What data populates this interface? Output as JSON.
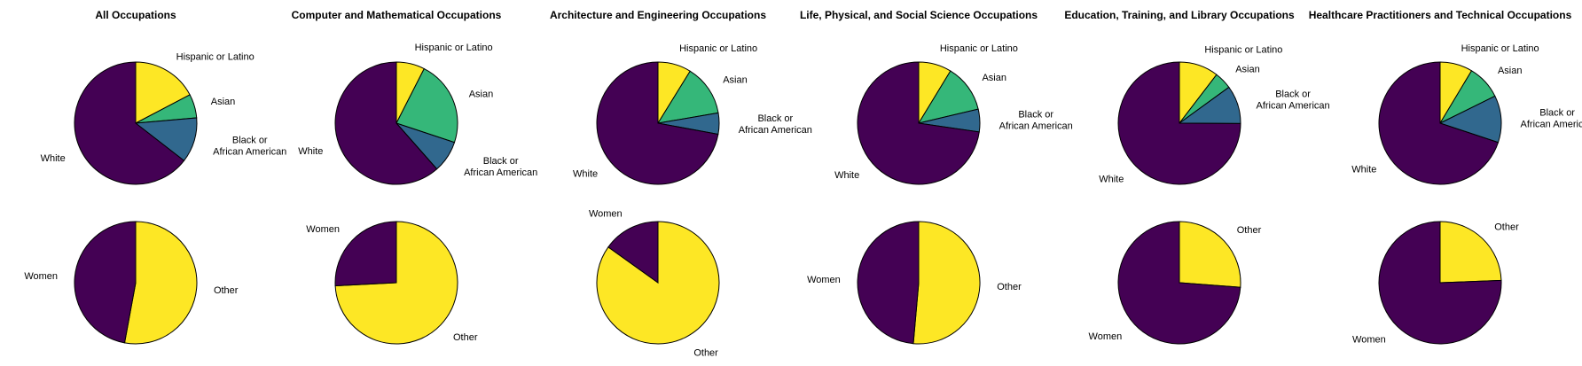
{
  "colors": {
    "White": "#440154",
    "Black or African American": "#31688e",
    "Asian": "#35b779",
    "Hispanic or Latino": "#fde725",
    "Women": "#440154",
    "Other": "#fde725"
  },
  "chart_data": [
    {
      "type": "pie",
      "title": "All Occupations",
      "race": [
        {
          "label": "Hispanic or Latino",
          "value": 17.3
        },
        {
          "label": "Asian",
          "value": 6.3
        },
        {
          "label": "Black or African American",
          "value": 11.9
        },
        {
          "label": "White",
          "value": 64.5
        }
      ],
      "gender": [
        {
          "label": "Other",
          "value": 52.9
        },
        {
          "label": "Women",
          "value": 47.1
        }
      ]
    },
    {
      "type": "pie",
      "title": "Computer and Mathematical Occupations",
      "race": [
        {
          "label": "Hispanic or Latino",
          "value": 7.5
        },
        {
          "label": "Asian",
          "value": 22.6
        },
        {
          "label": "Black or African American",
          "value": 8.4
        },
        {
          "label": "White",
          "value": 61.5
        }
      ],
      "gender": [
        {
          "label": "Other",
          "value": 74.2
        },
        {
          "label": "Women",
          "value": 25.8
        }
      ]
    },
    {
      "type": "pie",
      "title": "Architecture and Engineering Occupations",
      "race": [
        {
          "label": "Hispanic or Latino",
          "value": 8.8
        },
        {
          "label": "Asian",
          "value": 13.5
        },
        {
          "label": "Black or African American",
          "value": 5.6
        },
        {
          "label": "White",
          "value": 72.1
        }
      ],
      "gender": [
        {
          "label": "Other",
          "value": 84.9
        },
        {
          "label": "Women",
          "value": 15.1
        }
      ]
    },
    {
      "type": "pie",
      "title": "Life, Physical, and Social Science Occupations",
      "race": [
        {
          "label": "Hispanic or Latino",
          "value": 8.7
        },
        {
          "label": "Asian",
          "value": 12.6
        },
        {
          "label": "Black or African American",
          "value": 6.0
        },
        {
          "label": "White",
          "value": 72.7
        }
      ],
      "gender": [
        {
          "label": "Other",
          "value": 51.4
        },
        {
          "label": "Women",
          "value": 48.6
        }
      ]
    },
    {
      "type": "pie",
      "title": "Education, Training, and Library Occupations",
      "race": [
        {
          "label": "Hispanic or Latino",
          "value": 10.4
        },
        {
          "label": "Asian",
          "value": 4.6
        },
        {
          "label": "Black or African American",
          "value": 10.1
        },
        {
          "label": "White",
          "value": 74.9
        }
      ],
      "gender": [
        {
          "label": "Other",
          "value": 26.2
        },
        {
          "label": "Women",
          "value": 73.8
        }
      ]
    },
    {
      "type": "pie",
      "title": "Healthcare Practitioners and Technical Occupations",
      "race": [
        {
          "label": "Hispanic or Latino",
          "value": 8.6
        },
        {
          "label": "Asian",
          "value": 9.1
        },
        {
          "label": "Black or African American",
          "value": 12.4
        },
        {
          "label": "White",
          "value": 69.9
        }
      ],
      "gender": [
        {
          "label": "Other",
          "value": 24.4
        },
        {
          "label": "Women",
          "value": 75.6
        }
      ]
    }
  ]
}
